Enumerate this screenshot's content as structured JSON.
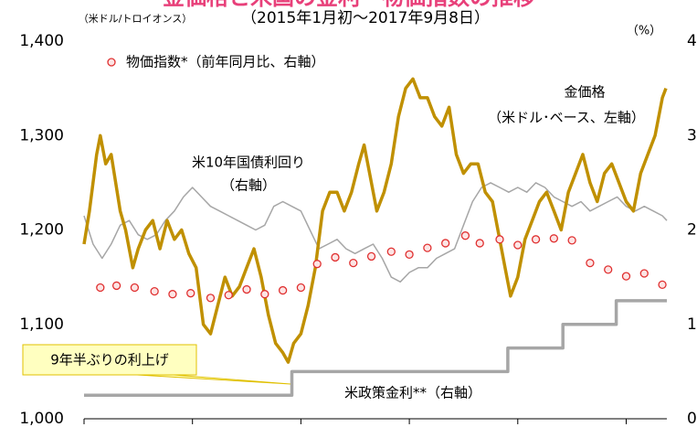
{
  "chart_data": {
    "type": "line",
    "title": "金価格と米国の金利・物価指数の推移",
    "subtitle": "（2015年1月初～2017年9月8日）",
    "y_label": "（米ドル/トロイオンス）",
    "y2_label": "（%）",
    "xlim": [
      0,
      32.25
    ],
    "xticks": [
      0,
      6,
      12,
      18,
      24,
      30
    ],
    "ylim": [
      1000,
      1400
    ],
    "yticks": [
      {
        "value": 1000,
        "label": "1,000"
      },
      {
        "value": 1100,
        "label": "1,100"
      },
      {
        "value": 1200,
        "label": "1,200"
      },
      {
        "value": 1300,
        "label": "1,300"
      },
      {
        "value": 1400,
        "label": "1,400"
      }
    ],
    "y2lim": [
      0,
      4
    ],
    "y2ticks": [
      0,
      1,
      2,
      3,
      4
    ],
    "series": [
      {
        "name": "米政策金利**（右軸）",
        "color": "#a6a6a6",
        "axis": "y2",
        "width": 3.5,
        "x": [
          0,
          11.5,
          11.5,
          23.45,
          23.45,
          26.5,
          26.5,
          29.45,
          29.45,
          32.25
        ],
        "values": [
          0.25,
          0.25,
          0.5,
          0.5,
          0.75,
          0.75,
          1.0,
          1.0,
          1.25,
          1.25
        ]
      },
      {
        "name": "米10年国債利回り",
        "color": "#a6a6a6",
        "axis": "y2",
        "width": 1.5,
        "x": [
          0,
          0.5,
          1,
          1.5,
          2,
          2.5,
          3,
          3.5,
          4,
          4.5,
          5,
          5.5,
          6,
          6.5,
          7,
          7.5,
          8,
          8.5,
          9,
          9.5,
          10,
          10.5,
          11,
          11.5,
          12,
          12.5,
          13,
          13.5,
          14,
          14.5,
          15,
          15.5,
          16,
          16.5,
          17,
          17.5,
          18,
          18.5,
          19,
          19.5,
          20,
          20.5,
          21,
          21.5,
          22,
          22.5,
          23,
          23.5,
          24,
          24.5,
          25,
          25.5,
          26,
          26.5,
          27,
          27.5,
          28,
          28.5,
          29,
          29.5,
          30,
          30.5,
          31,
          31.5,
          32,
          32.25
        ],
        "values": [
          2.15,
          1.85,
          1.7,
          1.85,
          2.05,
          2.1,
          1.95,
          1.9,
          1.95,
          2.1,
          2.2,
          2.35,
          2.45,
          2.35,
          2.25,
          2.2,
          2.15,
          2.1,
          2.05,
          2.0,
          2.05,
          2.25,
          2.3,
          2.25,
          2.2,
          2.0,
          1.8,
          1.85,
          1.9,
          1.8,
          1.75,
          1.8,
          1.85,
          1.7,
          1.5,
          1.45,
          1.55,
          1.6,
          1.6,
          1.7,
          1.75,
          1.8,
          2.05,
          2.3,
          2.45,
          2.5,
          2.45,
          2.4,
          2.45,
          2.4,
          2.5,
          2.45,
          2.35,
          2.3,
          2.25,
          2.3,
          2.2,
          2.25,
          2.3,
          2.35,
          2.25,
          2.2,
          2.25,
          2.2,
          2.15,
          2.1
        ]
      },
      {
        "name": "金価格",
        "color": "#c09000",
        "axis": "y",
        "width": 3.5,
        "x": [
          0,
          0.3,
          0.7,
          0.9,
          1.2,
          1.5,
          2,
          2.3,
          2.7,
          3,
          3.4,
          3.8,
          4.2,
          4.6,
          5,
          5.4,
          5.8,
          6.2,
          6.6,
          7,
          7.4,
          7.8,
          8.2,
          8.6,
          9,
          9.4,
          9.8,
          10.2,
          10.6,
          11,
          11.3,
          11.6,
          12,
          12.4,
          12.8,
          13.2,
          13.6,
          14,
          14.4,
          14.8,
          15.2,
          15.5,
          15.8,
          16.2,
          16.6,
          17,
          17.4,
          17.8,
          18.2,
          18.6,
          19,
          19.4,
          19.8,
          20.2,
          20.6,
          21,
          21.4,
          21.8,
          22.2,
          22.6,
          23,
          23.3,
          23.6,
          24,
          24.4,
          24.8,
          25.2,
          25.6,
          26,
          26.4,
          26.8,
          27.2,
          27.6,
          28,
          28.4,
          28.8,
          29.2,
          29.6,
          30,
          30.4,
          30.8,
          31.2,
          31.6,
          32,
          32.2
        ],
        "values": [
          1185,
          1220,
          1280,
          1300,
          1270,
          1280,
          1220,
          1200,
          1160,
          1180,
          1200,
          1210,
          1180,
          1210,
          1190,
          1200,
          1175,
          1160,
          1100,
          1090,
          1120,
          1150,
          1130,
          1140,
          1160,
          1180,
          1150,
          1110,
          1080,
          1070,
          1060,
          1080,
          1090,
          1120,
          1160,
          1220,
          1240,
          1240,
          1220,
          1240,
          1270,
          1290,
          1260,
          1220,
          1240,
          1270,
          1320,
          1350,
          1360,
          1340,
          1340,
          1320,
          1310,
          1330,
          1280,
          1260,
          1270,
          1270,
          1240,
          1230,
          1190,
          1160,
          1130,
          1150,
          1190,
          1210,
          1230,
          1240,
          1220,
          1200,
          1240,
          1260,
          1280,
          1250,
          1230,
          1260,
          1270,
          1250,
          1230,
          1220,
          1260,
          1280,
          1300,
          1340,
          1350
        ]
      },
      {
        "name": "物価指数*（前年同月比、右軸）",
        "color": "#e03030",
        "axis": "y2",
        "marker": true,
        "x": [
          0.9,
          1.8,
          2.8,
          3.9,
          4.9,
          5.9,
          7,
          8,
          9,
          10,
          11,
          12,
          12.9,
          13.9,
          14.9,
          15.9,
          17,
          18,
          19,
          20,
          21.1,
          21.9,
          23,
          24,
          25,
          26,
          27,
          28,
          29,
          30,
          31,
          32
        ],
        "values": [
          1.39,
          1.41,
          1.39,
          1.35,
          1.32,
          1.33,
          1.28,
          1.31,
          1.37,
          1.32,
          1.36,
          1.39,
          1.64,
          1.71,
          1.65,
          1.72,
          1.77,
          1.74,
          1.81,
          1.86,
          1.94,
          1.86,
          1.9,
          1.84,
          1.9,
          1.91,
          1.89,
          1.65,
          1.58,
          1.51,
          1.54,
          1.42
        ]
      }
    ],
    "annotations": [
      "（米ドル･ベース、左軸）",
      "（右軸）",
      "9年半ぶりの利上げ"
    ]
  }
}
